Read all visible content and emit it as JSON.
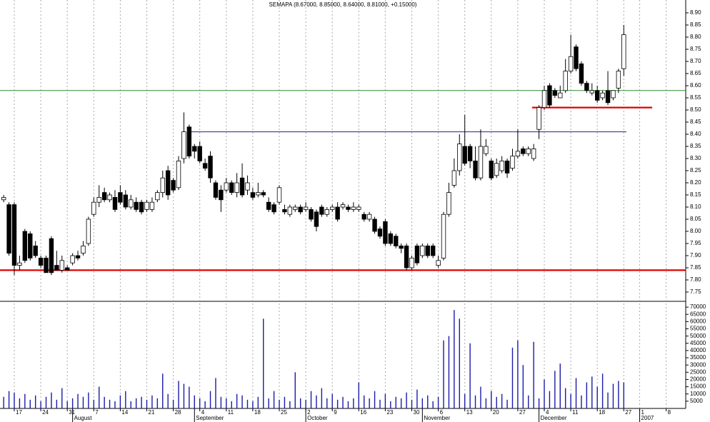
{
  "chart_data": {
    "type": "candlestick",
    "title": "SEMAPA (8.67000, 8.85000, 8.64000, 8.81000, +0.15000)",
    "categories": [
      null,
      null,
      "17",
      null,
      null,
      null,
      null,
      "24",
      null,
      null,
      null,
      null,
      "31",
      null,
      null,
      null,
      null,
      "7",
      null,
      null,
      null,
      null,
      "14",
      null,
      null,
      null,
      null,
      "21",
      null,
      null,
      null,
      null,
      "28",
      null,
      null,
      null,
      null,
      "4",
      null,
      null,
      null,
      null,
      "11",
      null,
      null,
      null,
      null,
      "18",
      null,
      null,
      null,
      null,
      "25",
      null,
      null,
      null,
      null,
      "2",
      null,
      null,
      null,
      null,
      "9",
      null,
      null,
      null,
      null,
      "16",
      null,
      null,
      null,
      null,
      "23",
      null,
      null,
      null,
      null,
      "30",
      null,
      null,
      null,
      null,
      "6",
      null,
      null,
      null,
      null,
      "13",
      null,
      null,
      null,
      null,
      "20",
      null,
      null,
      null,
      null,
      "27",
      null,
      null,
      null,
      null,
      "4",
      null,
      null,
      null,
      null,
      "11",
      null,
      null,
      null,
      null,
      "18",
      null,
      null,
      null,
      null,
      "27",
      null,
      null,
      "1",
      null,
      null,
      null,
      null,
      "8"
    ],
    "months": [
      null,
      null,
      null,
      null,
      null,
      null,
      null,
      null,
      null,
      null,
      null,
      null,
      null,
      "August",
      null,
      null,
      null,
      null,
      null,
      null,
      null,
      null,
      null,
      null,
      null,
      null,
      null,
      null,
      null,
      null,
      null,
      null,
      null,
      null,
      null,
      null,
      "September",
      null,
      null,
      null,
      null,
      null,
      null,
      null,
      null,
      null,
      null,
      null,
      null,
      null,
      null,
      null,
      null,
      null,
      null,
      null,
      null,
      "October",
      null,
      null,
      null,
      null,
      null,
      null,
      null,
      null,
      null,
      null,
      null,
      null,
      null,
      null,
      null,
      null,
      null,
      null,
      null,
      null,
      null,
      "November",
      null,
      null,
      null,
      null,
      null,
      null,
      null,
      null,
      null,
      null,
      null,
      null,
      null,
      null,
      null,
      null,
      null,
      null,
      null,
      null,
      null,
      "December",
      null,
      null,
      null,
      null,
      null,
      null,
      null,
      null,
      null,
      null,
      null,
      null,
      null,
      null,
      null,
      null,
      null,
      null,
      "2007",
      null,
      null,
      null,
      null,
      null
    ],
    "open": [
      8.13,
      8.11,
      8.11,
      7.86,
      8.0,
      7.99,
      7.94,
      7.89,
      7.89,
      7.97,
      7.86,
      7.84,
      7.85,
      7.87,
      7.9,
      7.91,
      7.95,
      8.07,
      8.12,
      8.16,
      8.13,
      8.14,
      8.16,
      8.15,
      8.1,
      8.12,
      8.12,
      8.09,
      8.09,
      8.13,
      8.16,
      8.25,
      8.21,
      8.18,
      8.3,
      8.43,
      8.35,
      8.35,
      8.28,
      8.31,
      8.2,
      8.17,
      8.17,
      8.2,
      8.16,
      8.22,
      8.17,
      8.16,
      8.15,
      8.16,
      8.12,
      8.11,
      8.12,
      8.09,
      8.07,
      8.09,
      8.1,
      8.09,
      8.09,
      8.08,
      8.1,
      8.07,
      8.09,
      8.1,
      8.1,
      8.1,
      8.09,
      8.09,
      8.07,
      8.05,
      8.05,
      8.01,
      8.04,
      7.99,
      7.98,
      7.94,
      7.94,
      7.85,
      7.94,
      7.9,
      7.94,
      7.94,
      7.86,
      7.89,
      8.07,
      8.19,
      8.25,
      8.35,
      8.35,
      8.29,
      8.22,
      8.32,
      8.29,
      8.23,
      8.25,
      8.29,
      8.26,
      8.31,
      8.34,
      8.32,
      8.3,
      8.42,
      8.51,
      8.6,
      8.58,
      8.55,
      8.58,
      8.66,
      8.76,
      8.69,
      8.61,
      8.57,
      8.58,
      8.55,
      8.58,
      8.55,
      8.59,
      8.67,
      null,
      null,
      null,
      null,
      null,
      null,
      null,
      null
    ],
    "high": [
      8.15,
      8.12,
      8.12,
      7.9,
      8.01,
      8.0,
      7.96,
      7.9,
      7.9,
      7.98,
      7.92,
      7.9,
      7.86,
      7.91,
      7.92,
      7.96,
      8.06,
      8.14,
      8.19,
      8.18,
      8.16,
      8.17,
      8.19,
      8.17,
      8.15,
      8.14,
      8.13,
      8.13,
      8.14,
      8.17,
      8.25,
      8.27,
      8.22,
      8.31,
      8.49,
      8.44,
      8.36,
      8.37,
      8.3,
      8.33,
      8.21,
      8.19,
      8.22,
      8.21,
      8.24,
      8.28,
      8.23,
      8.18,
      8.2,
      8.17,
      8.14,
      8.12,
      8.19,
      8.11,
      8.11,
      8.11,
      8.11,
      8.12,
      8.1,
      8.09,
      8.11,
      8.1,
      8.11,
      8.12,
      8.12,
      8.11,
      8.12,
      8.11,
      8.08,
      8.08,
      8.06,
      8.02,
      8.05,
      8.0,
      7.99,
      7.95,
      7.95,
      7.9,
      7.95,
      7.95,
      7.95,
      7.95,
      7.9,
      8.08,
      8.2,
      8.3,
      8.4,
      8.48,
      8.36,
      8.35,
      8.42,
      8.38,
      8.3,
      8.3,
      8.31,
      8.3,
      8.34,
      8.42,
      8.35,
      8.35,
      8.36,
      8.52,
      8.6,
      8.61,
      8.59,
      8.6,
      8.71,
      8.81,
      8.77,
      8.7,
      8.62,
      8.61,
      8.6,
      8.58,
      8.66,
      8.58,
      8.67,
      8.85,
      null,
      null,
      null,
      null,
      null,
      null,
      null,
      null
    ],
    "low": [
      8.12,
      7.9,
      7.82,
      7.84,
      7.87,
      7.88,
      7.89,
      7.85,
      7.83,
      7.82,
      7.84,
      7.83,
      7.84,
      7.86,
      7.88,
      7.9,
      7.94,
      8.06,
      8.1,
      8.12,
      8.12,
      8.08,
      8.11,
      8.09,
      8.09,
      8.08,
      8.07,
      8.08,
      8.08,
      8.12,
      8.14,
      8.13,
      8.16,
      8.17,
      8.28,
      8.3,
      8.3,
      8.28,
      8.25,
      8.2,
      8.13,
      8.08,
      8.16,
      8.15,
      8.14,
      8.14,
      8.15,
      8.13,
      8.14,
      8.14,
      8.08,
      8.07,
      8.11,
      8.07,
      8.06,
      8.08,
      8.07,
      8.08,
      8.04,
      8.0,
      8.06,
      8.06,
      8.08,
      8.04,
      8.09,
      8.08,
      8.08,
      8.08,
      8.04,
      8.04,
      7.99,
      7.97,
      7.94,
      7.94,
      7.93,
      7.91,
      7.84,
      7.84,
      7.86,
      7.89,
      7.89,
      7.89,
      7.85,
      7.88,
      8.06,
      8.18,
      8.23,
      8.27,
      8.26,
      8.21,
      8.21,
      8.31,
      8.21,
      8.22,
      8.24,
      8.22,
      8.25,
      8.3,
      8.31,
      8.31,
      8.29,
      8.38,
      8.5,
      8.51,
      8.55,
      8.55,
      8.57,
      8.65,
      8.66,
      8.6,
      8.57,
      8.56,
      8.53,
      8.54,
      8.52,
      8.54,
      8.57,
      8.64,
      null,
      null,
      null,
      null,
      null,
      null,
      null,
      null
    ],
    "close": [
      8.14,
      7.91,
      7.86,
      7.87,
      7.88,
      7.89,
      7.9,
      7.86,
      7.83,
      7.83,
      7.84,
      7.88,
      7.84,
      7.9,
      7.89,
      7.94,
      8.05,
      8.12,
      8.14,
      8.13,
      8.15,
      8.09,
      8.12,
      8.1,
      8.13,
      8.09,
      8.08,
      8.12,
      8.12,
      8.16,
      8.22,
      8.15,
      8.17,
      8.29,
      8.41,
      8.31,
      8.33,
      8.29,
      8.26,
      8.22,
      8.14,
      8.13,
      8.2,
      8.16,
      8.2,
      8.15,
      8.2,
      8.14,
      8.16,
      8.15,
      8.09,
      8.08,
      8.18,
      8.08,
      8.1,
      8.1,
      8.08,
      8.1,
      8.05,
      8.02,
      8.07,
      8.09,
      8.1,
      8.05,
      8.11,
      8.09,
      8.1,
      8.1,
      8.05,
      8.07,
      8.0,
      7.98,
      7.95,
      7.95,
      7.94,
      7.93,
      7.85,
      7.89,
      7.87,
      7.94,
      7.9,
      7.9,
      7.88,
      8.07,
      8.16,
      8.25,
      8.36,
      8.28,
      8.29,
      8.22,
      8.35,
      8.35,
      8.22,
      8.28,
      8.29,
      8.24,
      8.31,
      8.33,
      8.32,
      8.34,
      8.34,
      8.51,
      8.58,
      8.52,
      8.56,
      8.57,
      8.66,
      8.72,
      8.67,
      8.61,
      8.58,
      8.58,
      8.54,
      8.57,
      8.53,
      8.58,
      8.66,
      8.81,
      null,
      null,
      null,
      null,
      null,
      null,
      null,
      null
    ],
    "ylim": [
      7.71,
      8.95
    ],
    "yticks": [
      {
        "value": 7.75,
        "label": "7.75"
      },
      {
        "value": 7.8,
        "label": "7.80"
      },
      {
        "value": 7.85,
        "label": "7.85"
      },
      {
        "value": 7.9,
        "label": "7.90"
      },
      {
        "value": 7.95,
        "label": "7.95"
      },
      {
        "value": 8.0,
        "label": "8.00"
      },
      {
        "value": 8.05,
        "label": "8.05"
      },
      {
        "value": 8.1,
        "label": "8.10"
      },
      {
        "value": 8.15,
        "label": "8.15"
      },
      {
        "value": 8.2,
        "label": "8.20"
      },
      {
        "value": 8.25,
        "label": "8.25"
      },
      {
        "value": 8.3,
        "label": "8.30"
      },
      {
        "value": 8.35,
        "label": "8.35"
      },
      {
        "value": 8.4,
        "label": "8.40"
      },
      {
        "value": 8.45,
        "label": "8.45"
      },
      {
        "value": 8.5,
        "label": "8.50"
      },
      {
        "value": 8.55,
        "label": "8.55"
      },
      {
        "value": 8.6,
        "label": "8.60"
      },
      {
        "value": 8.65,
        "label": "8.65"
      },
      {
        "value": 8.7,
        "label": "8.70"
      },
      {
        "value": 8.75,
        "label": "8.75"
      },
      {
        "value": 8.8,
        "label": "8.80"
      },
      {
        "value": 8.85,
        "label": "8.85"
      },
      {
        "value": 8.9,
        "label": "8.90"
      }
    ],
    "lines": [
      {
        "value": 8.58,
        "color": "#2e8b2e"
      },
      {
        "value": 8.41,
        "color": "#20208c"
      },
      {
        "value": 7.84,
        "color": "#e00000"
      },
      {
        "value": 8.51,
        "color": "#e00000"
      }
    ],
    "volume": {
      "color": "#1a1aa8",
      "values": [
        8000,
        12000,
        11000,
        7000,
        10000,
        6000,
        9000,
        5000,
        8000,
        11000,
        6000,
        14000,
        5000,
        7000,
        10000,
        8000,
        11000,
        6000,
        15000,
        8000,
        6000,
        5000,
        9000,
        12000,
        5000,
        7000,
        8000,
        6000,
        9000,
        7000,
        24000,
        10000,
        6000,
        19000,
        17000,
        15000,
        9000,
        7000,
        5000,
        12000,
        21000,
        8000,
        7000,
        5000,
        10000,
        9000,
        6000,
        5000,
        8000,
        62000,
        7000,
        12000,
        6000,
        8000,
        5000,
        25000,
        7000,
        6000,
        12000,
        9000,
        14000,
        7000,
        10000,
        6000,
        8000,
        5000,
        7000,
        18000,
        9000,
        7000,
        12000,
        6000,
        10000,
        5000,
        8000,
        7000,
        11000,
        6000,
        13000,
        7000,
        9000,
        5000,
        8000,
        47000,
        50000,
        68000,
        62000,
        10000,
        45000,
        9000,
        15000,
        7000,
        12000,
        8000,
        10000,
        6000,
        42000,
        47000,
        30000,
        9000,
        46000,
        7000,
        20000,
        12000,
        26000,
        31000,
        14000,
        10000,
        21000,
        9000,
        18000,
        22000,
        15000,
        24000,
        11000,
        17000,
        19000,
        18000,
        null,
        null,
        null,
        null,
        null,
        null,
        null,
        null
      ],
      "ylim": [
        0,
        74000
      ],
      "yticks": [
        5000,
        10000,
        15000,
        20000,
        25000,
        30000,
        35000,
        40000,
        45000,
        50000,
        55000,
        60000,
        65000,
        70000
      ]
    }
  }
}
